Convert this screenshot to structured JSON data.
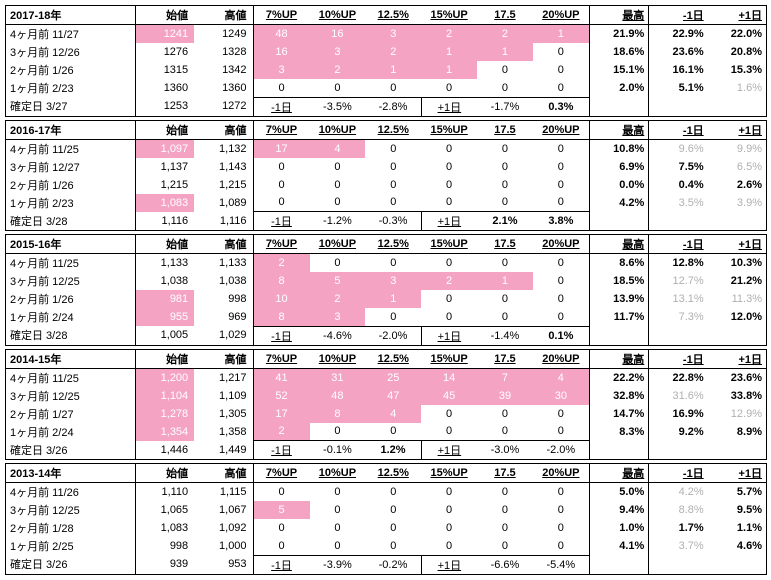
{
  "headers": {
    "start": "始値",
    "high": "高値",
    "up7": "7%UP",
    "up10": "10%UP",
    "up125": "12.5%",
    "up15": "15%UP",
    "up175": "17.5",
    "up20": "20%UP",
    "max": "最高",
    "dm1": "-1日",
    "dp1": "+1日"
  },
  "blocks": [
    {
      "year": "2017-18年",
      "rows": [
        {
          "label": "4ヶ月前 11/27",
          "v1": {
            "t": "1241",
            "c": "pink-text"
          },
          "v2": "1249",
          "u": [
            {
              "t": "48",
              "c": "pink-bg"
            },
            {
              "t": "16",
              "c": "pink-bg"
            },
            {
              "t": "3",
              "c": "pink-bg"
            },
            {
              "t": "2",
              "c": "pink-bg"
            },
            {
              "t": "2",
              "c": "pink-bg"
            },
            {
              "t": "1",
              "c": "pink-bg"
            }
          ],
          "r": [
            "21.9%",
            "22.9%",
            "22.0%"
          ]
        },
        {
          "label": "3ヶ月前 12/26",
          "v1": {
            "t": "1276"
          },
          "v2": "1328",
          "u": [
            {
              "t": "16",
              "c": "pink-bg"
            },
            {
              "t": "3",
              "c": "pink-bg"
            },
            {
              "t": "2",
              "c": "pink-bg"
            },
            {
              "t": "1",
              "c": "pink-bg"
            },
            {
              "t": "1",
              "c": "pink-bg"
            },
            {
              "t": "0"
            }
          ],
          "r": [
            "18.6%",
            "23.6%",
            "20.8%"
          ]
        },
        {
          "label": "2ヶ月前  1/26",
          "v1": {
            "t": "1315"
          },
          "v2": "1342",
          "u": [
            {
              "t": "3",
              "c": "pink-bg"
            },
            {
              "t": "2",
              "c": "pink-bg"
            },
            {
              "t": "1",
              "c": "pink-bg"
            },
            {
              "t": "1",
              "c": "pink-bg"
            },
            {
              "t": "0"
            },
            {
              "t": "0"
            }
          ],
          "r": [
            "15.1%",
            "16.1%",
            "15.3%"
          ]
        },
        {
          "label": "1ヶ月前  2/23",
          "v1": {
            "t": "1360"
          },
          "v2": "1360",
          "u": [
            {
              "t": "0"
            },
            {
              "t": "0"
            },
            {
              "t": "0"
            },
            {
              "t": "0"
            },
            {
              "t": "0"
            },
            {
              "t": "0"
            }
          ],
          "r": [
            "2.0%",
            "5.1%",
            {
              "t": "1.6%",
              "c": "gray"
            }
          ]
        },
        {
          "label": " 確定日  3/27",
          "v1": {
            "t": "1253"
          },
          "v2": "1272",
          "u": [
            {
              "t": "-1日",
              "c": "box",
              "u": 1
            },
            {
              "t": "-3.5%"
            },
            {
              "t": "-2.8%"
            },
            {
              "t": "+1日",
              "u": 1
            },
            {
              "t": "-1.7%"
            },
            {
              "t": "0.3%",
              "b": 1
            }
          ],
          "r": [
            "",
            "",
            ""
          ],
          "last": true
        }
      ]
    },
    {
      "year": "2016-17年",
      "rows": [
        {
          "label": "4ヶ月前 11/25",
          "v1": {
            "t": "1,097",
            "c": "pink-text"
          },
          "v2": "1,132",
          "u": [
            {
              "t": "17",
              "c": "pink-bg"
            },
            {
              "t": "4",
              "c": "pink-bg"
            },
            {
              "t": "0"
            },
            {
              "t": "0"
            },
            {
              "t": "0"
            },
            {
              "t": "0"
            }
          ],
          "r": [
            "10.8%",
            {
              "t": "9.6%",
              "c": "gray"
            },
            {
              "t": "9.9%",
              "c": "gray"
            }
          ]
        },
        {
          "label": "3ヶ月前 12/27",
          "v1": {
            "t": "1,137"
          },
          "v2": "1,143",
          "u": [
            {
              "t": "0"
            },
            {
              "t": "0"
            },
            {
              "t": "0"
            },
            {
              "t": "0"
            },
            {
              "t": "0"
            },
            {
              "t": "0"
            }
          ],
          "r": [
            "6.9%",
            "7.5%",
            {
              "t": "6.5%",
              "c": "gray"
            }
          ]
        },
        {
          "label": "2ヶ月前  1/26",
          "v1": {
            "t": "1,215"
          },
          "v2": "1,215",
          "u": [
            {
              "t": "0"
            },
            {
              "t": "0"
            },
            {
              "t": "0"
            },
            {
              "t": "0"
            },
            {
              "t": "0"
            },
            {
              "t": "0"
            }
          ],
          "r": [
            "0.0%",
            "0.4%",
            "2.6%"
          ]
        },
        {
          "label": "1ヶ月前  2/23",
          "v1": {
            "t": "1,083",
            "c": "pink-text"
          },
          "v2": "1,089",
          "u": [
            {
              "t": "0"
            },
            {
              "t": "0"
            },
            {
              "t": "0"
            },
            {
              "t": "0"
            },
            {
              "t": "0"
            },
            {
              "t": "0"
            }
          ],
          "r": [
            "4.2%",
            {
              "t": "3.5%",
              "c": "gray"
            },
            {
              "t": "3.9%",
              "c": "gray"
            }
          ]
        },
        {
          "label": " 確定日  3/28",
          "v1": {
            "t": "1,116"
          },
          "v2": "1,116",
          "u": [
            {
              "t": "-1日",
              "c": "box",
              "u": 1
            },
            {
              "t": "-1.2%"
            },
            {
              "t": "-0.3%"
            },
            {
              "t": "+1日",
              "u": 1
            },
            {
              "t": "2.1%",
              "b": 1
            },
            {
              "t": "3.8%",
              "b": 1
            }
          ],
          "r": [
            "",
            "",
            ""
          ],
          "last": true
        }
      ]
    },
    {
      "year": "2015-16年",
      "rows": [
        {
          "label": "4ヶ月前 11/25",
          "v1": {
            "t": "1,133"
          },
          "v2": "1,133",
          "u": [
            {
              "t": "2",
              "c": "pink-bg"
            },
            {
              "t": "0"
            },
            {
              "t": "0"
            },
            {
              "t": "0"
            },
            {
              "t": "0"
            },
            {
              "t": "0"
            }
          ],
          "r": [
            "8.6%",
            "12.8%",
            "10.3%"
          ]
        },
        {
          "label": "3ヶ月前 12/25",
          "v1": {
            "t": "1,038"
          },
          "v2": "1,038",
          "u": [
            {
              "t": "8",
              "c": "pink-bg"
            },
            {
              "t": "5",
              "c": "pink-bg"
            },
            {
              "t": "3",
              "c": "pink-bg"
            },
            {
              "t": "2",
              "c": "pink-bg"
            },
            {
              "t": "1",
              "c": "pink-bg"
            },
            {
              "t": "0"
            }
          ],
          "r": [
            "18.5%",
            {
              "t": "12.7%",
              "c": "gray"
            },
            "21.2%"
          ]
        },
        {
          "label": "2ヶ月前  1/26",
          "v1": {
            "t": "981",
            "c": "pink-text"
          },
          "v2": "998",
          "u": [
            {
              "t": "10",
              "c": "pink-bg"
            },
            {
              "t": "2",
              "c": "pink-bg"
            },
            {
              "t": "1",
              "c": "pink-bg"
            },
            {
              "t": "0"
            },
            {
              "t": "0"
            },
            {
              "t": "0"
            }
          ],
          "r": [
            "13.9%",
            {
              "t": "13.1%",
              "c": "gray"
            },
            {
              "t": "11.3%",
              "c": "gray"
            }
          ]
        },
        {
          "label": "1ヶ月前  2/24",
          "v1": {
            "t": "955",
            "c": "pink-text"
          },
          "v2": "969",
          "u": [
            {
              "t": "8",
              "c": "pink-bg"
            },
            {
              "t": "3",
              "c": "pink-bg"
            },
            {
              "t": "0"
            },
            {
              "t": "0"
            },
            {
              "t": "0"
            },
            {
              "t": "0"
            }
          ],
          "r": [
            "11.7%",
            {
              "t": "7.3%",
              "c": "gray"
            },
            "12.0%"
          ]
        },
        {
          "label": " 確定日  3/28",
          "v1": {
            "t": "1,005"
          },
          "v2": "1,029",
          "u": [
            {
              "t": "-1日",
              "c": "box",
              "u": 1
            },
            {
              "t": "-4.6%"
            },
            {
              "t": "-2.0%"
            },
            {
              "t": "+1日",
              "u": 1
            },
            {
              "t": "-1.4%"
            },
            {
              "t": "0.1%",
              "b": 1
            }
          ],
          "r": [
            "",
            "",
            ""
          ],
          "last": true
        }
      ]
    },
    {
      "year": "2014-15年",
      "rows": [
        {
          "label": "4ヶ月前 11/25",
          "v1": {
            "t": "1,200",
            "c": "pink-text"
          },
          "v2": "1,217",
          "u": [
            {
              "t": "41",
              "c": "pink-bg"
            },
            {
              "t": "31",
              "c": "pink-bg"
            },
            {
              "t": "25",
              "c": "pink-bg"
            },
            {
              "t": "14",
              "c": "pink-bg"
            },
            {
              "t": "7",
              "c": "pink-bg"
            },
            {
              "t": "4",
              "c": "pink-bg"
            }
          ],
          "r": [
            "22.2%",
            "22.8%",
            "23.6%"
          ]
        },
        {
          "label": "3ヶ月前 12/25",
          "v1": {
            "t": "1,104",
            "c": "pink-text"
          },
          "v2": "1,109",
          "u": [
            {
              "t": "52",
              "c": "pink-bg"
            },
            {
              "t": "48",
              "c": "pink-bg"
            },
            {
              "t": "47",
              "c": "pink-bg"
            },
            {
              "t": "45",
              "c": "pink-bg"
            },
            {
              "t": "39",
              "c": "pink-bg"
            },
            {
              "t": "30",
              "c": "pink-bg"
            }
          ],
          "r": [
            "32.8%",
            {
              "t": "31.6%",
              "c": "gray"
            },
            "33.8%"
          ]
        },
        {
          "label": "2ヶ月前  1/27",
          "v1": {
            "t": "1,278",
            "c": "pink-text"
          },
          "v2": "1,305",
          "u": [
            {
              "t": "17",
              "c": "pink-bg"
            },
            {
              "t": "8",
              "c": "pink-bg"
            },
            {
              "t": "4",
              "c": "pink-bg"
            },
            {
              "t": "0"
            },
            {
              "t": "0"
            },
            {
              "t": "0"
            }
          ],
          "r": [
            "14.7%",
            "16.9%",
            {
              "t": "12.9%",
              "c": "gray"
            }
          ]
        },
        {
          "label": "1ヶ月前  2/24",
          "v1": {
            "t": "1,354",
            "c": "pink-text"
          },
          "v2": "1,358",
          "u": [
            {
              "t": "2",
              "c": "pink-bg"
            },
            {
              "t": "0"
            },
            {
              "t": "0"
            },
            {
              "t": "0"
            },
            {
              "t": "0"
            },
            {
              "t": "0"
            }
          ],
          "r": [
            "8.3%",
            "9.2%",
            "8.9%"
          ]
        },
        {
          "label": " 確定日  3/26",
          "v1": {
            "t": "1,446"
          },
          "v2": "1,449",
          "u": [
            {
              "t": "-1日",
              "c": "box",
              "u": 1
            },
            {
              "t": "-0.1%"
            },
            {
              "t": "1.2%",
              "b": 1
            },
            {
              "t": "+1日",
              "u": 1
            },
            {
              "t": "-3.0%"
            },
            {
              "t": "-2.0%"
            }
          ],
          "r": [
            "",
            "",
            ""
          ],
          "last": true
        }
      ]
    },
    {
      "year": "2013-14年",
      "rows": [
        {
          "label": "4ヶ月前 11/26",
          "v1": {
            "t": "1,110"
          },
          "v2": "1,115",
          "u": [
            {
              "t": "0"
            },
            {
              "t": "0"
            },
            {
              "t": "0"
            },
            {
              "t": "0"
            },
            {
              "t": "0"
            },
            {
              "t": "0"
            }
          ],
          "r": [
            "5.0%",
            {
              "t": "4.2%",
              "c": "gray"
            },
            "5.7%"
          ]
        },
        {
          "label": "3ヶ月前 12/25",
          "v1": {
            "t": "1,065"
          },
          "v2": "1,067",
          "u": [
            {
              "t": "5",
              "c": "pink-bg"
            },
            {
              "t": "0"
            },
            {
              "t": "0"
            },
            {
              "t": "0"
            },
            {
              "t": "0"
            },
            {
              "t": "0"
            }
          ],
          "r": [
            "9.4%",
            {
              "t": "8.8%",
              "c": "gray"
            },
            "9.5%"
          ]
        },
        {
          "label": "2ヶ月前  1/28",
          "v1": {
            "t": "1,083"
          },
          "v2": "1,092",
          "u": [
            {
              "t": "0"
            },
            {
              "t": "0"
            },
            {
              "t": "0"
            },
            {
              "t": "0"
            },
            {
              "t": "0"
            },
            {
              "t": "0"
            }
          ],
          "r": [
            "1.0%",
            "1.7%",
            "1.1%"
          ]
        },
        {
          "label": "1ヶ月前  2/25",
          "v1": {
            "t": "998"
          },
          "v2": "1,000",
          "u": [
            {
              "t": "0"
            },
            {
              "t": "0"
            },
            {
              "t": "0"
            },
            {
              "t": "0"
            },
            {
              "t": "0"
            },
            {
              "t": "0"
            }
          ],
          "r": [
            "4.1%",
            {
              "t": "3.7%",
              "c": "gray"
            },
            "4.6%"
          ]
        },
        {
          "label": " 確定日  3/26",
          "v1": {
            "t": "939"
          },
          "v2": "953",
          "u": [
            {
              "t": "-1日",
              "c": "box",
              "u": 1
            },
            {
              "t": "-3.9%"
            },
            {
              "t": "-0.2%"
            },
            {
              "t": "+1日",
              "u": 1
            },
            {
              "t": "-6.6%"
            },
            {
              "t": "-5.4%"
            }
          ],
          "r": [
            "",
            "",
            ""
          ],
          "last": true
        }
      ]
    }
  ]
}
